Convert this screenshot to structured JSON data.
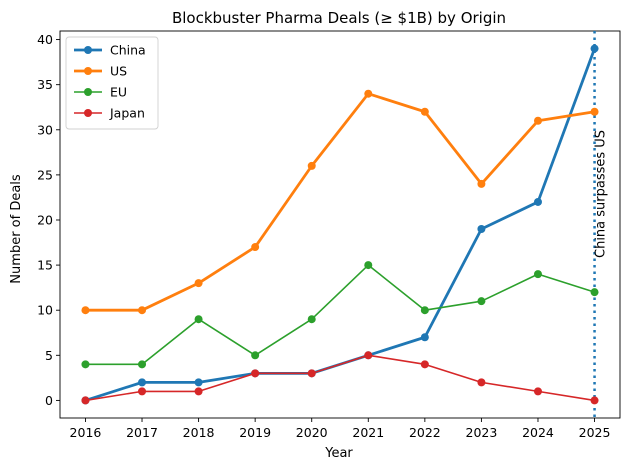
{
  "chart_data": {
    "type": "line",
    "title": "Blockbuster Pharma Deals (≥ $1B) by Origin",
    "xlabel": "Year",
    "ylabel": "Number of Deals",
    "x": [
      2016,
      2017,
      2018,
      2019,
      2020,
      2021,
      2022,
      2023,
      2024,
      2025
    ],
    "xlim": [
      2015.55,
      2025.45
    ],
    "ylim": [
      -1.95,
      40.95
    ],
    "yticks": [
      0,
      5,
      10,
      15,
      20,
      25,
      30,
      35,
      40
    ],
    "grid": false,
    "legend_position": "upper-left",
    "series": [
      {
        "name": "China",
        "color": "#1f77b4",
        "emphasis": true,
        "values": [
          0,
          2,
          2,
          3,
          3,
          5,
          7,
          19,
          22,
          39
        ]
      },
      {
        "name": "US",
        "color": "#ff7f0e",
        "emphasis": true,
        "values": [
          10,
          10,
          13,
          17,
          26,
          34,
          32,
          24,
          31,
          32
        ]
      },
      {
        "name": "EU",
        "color": "#2ca02c",
        "emphasis": false,
        "values": [
          4,
          4,
          9,
          5,
          9,
          15,
          10,
          11,
          14,
          12
        ]
      },
      {
        "name": "Japan",
        "color": "#d62728",
        "emphasis": false,
        "values": [
          0,
          1,
          1,
          3,
          3,
          5,
          4,
          2,
          1,
          0
        ]
      }
    ],
    "annotations": [
      {
        "x": 2025,
        "text": "China surpasses US",
        "line_style": "dotted",
        "color": "#1f77b4"
      }
    ]
  }
}
